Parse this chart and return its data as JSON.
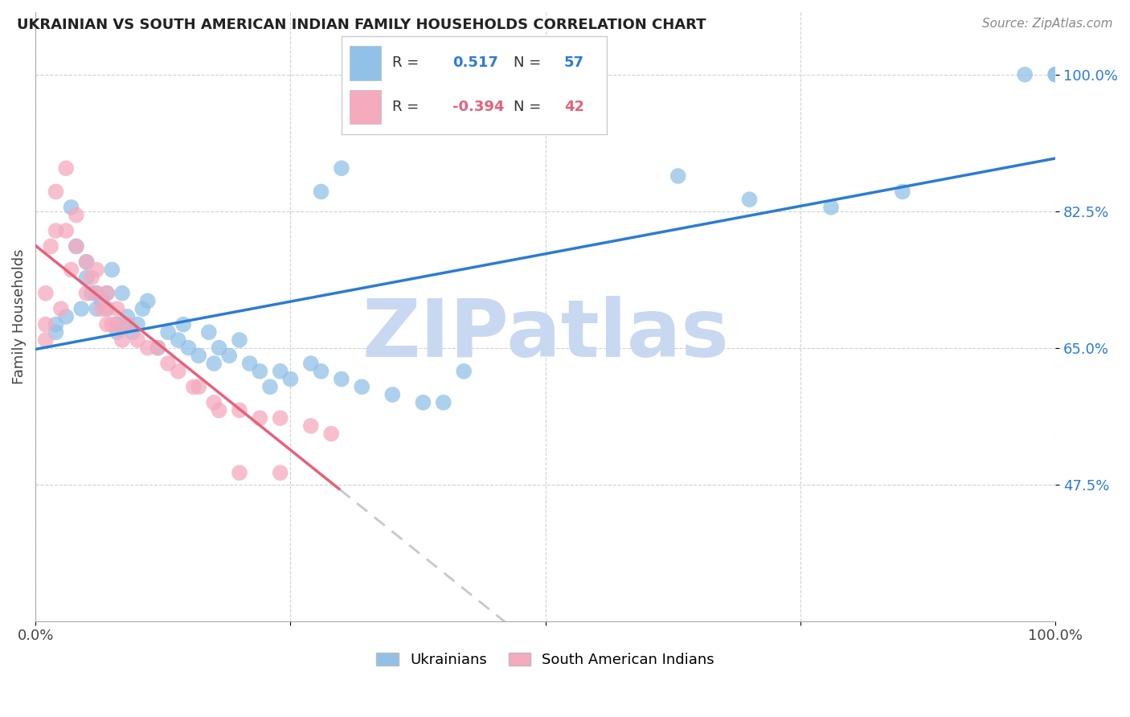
{
  "title": "UKRAINIAN VS SOUTH AMERICAN INDIAN FAMILY HOUSEHOLDS CORRELATION CHART",
  "source": "Source: ZipAtlas.com",
  "ylabel": "Family Households",
  "ytick_labels": [
    "100.0%",
    "82.5%",
    "65.0%",
    "47.5%"
  ],
  "ytick_values": [
    1.0,
    0.825,
    0.65,
    0.475
  ],
  "xlim": [
    0.0,
    1.0
  ],
  "ylim": [
    0.3,
    1.08
  ],
  "blue_R": "0.517",
  "blue_N": "57",
  "pink_R": "-0.394",
  "pink_N": "42",
  "blue_color": "#92C1E8",
  "pink_color": "#F5AABE",
  "blue_line_color": "#2B7CD3",
  "pink_line_color": "#E8607A",
  "watermark_text": "ZIPatlas",
  "watermark_color": "#C8D8F0",
  "blue_scatter_x": [
    0.02,
    0.02,
    0.03,
    0.035,
    0.04,
    0.045,
    0.05,
    0.05,
    0.055,
    0.06,
    0.06,
    0.065,
    0.07,
    0.07,
    0.075,
    0.08,
    0.08,
    0.085,
    0.09,
    0.09,
    0.095,
    0.1,
    0.105,
    0.11,
    0.12,
    0.13,
    0.14,
    0.145,
    0.15,
    0.16,
    0.17,
    0.175,
    0.18,
    0.19,
    0.2,
    0.21,
    0.22,
    0.23,
    0.24,
    0.25,
    0.27,
    0.28,
    0.3,
    0.32,
    0.35,
    0.38,
    0.4,
    0.42,
    0.3,
    0.28,
    0.7,
    0.85,
    1.0,
    0.97,
    0.63,
    1.0,
    0.78
  ],
  "blue_scatter_y": [
    0.68,
    0.67,
    0.69,
    0.83,
    0.78,
    0.7,
    0.76,
    0.74,
    0.72,
    0.72,
    0.7,
    0.71,
    0.72,
    0.7,
    0.75,
    0.68,
    0.67,
    0.72,
    0.69,
    0.68,
    0.67,
    0.68,
    0.7,
    0.71,
    0.65,
    0.67,
    0.66,
    0.68,
    0.65,
    0.64,
    0.67,
    0.63,
    0.65,
    0.64,
    0.66,
    0.63,
    0.62,
    0.6,
    0.62,
    0.61,
    0.63,
    0.62,
    0.61,
    0.6,
    0.59,
    0.58,
    0.58,
    0.62,
    0.88,
    0.85,
    0.84,
    0.85,
    1.0,
    1.0,
    0.87,
    1.0,
    0.83
  ],
  "pink_scatter_x": [
    0.01,
    0.01,
    0.015,
    0.02,
    0.02,
    0.025,
    0.03,
    0.03,
    0.035,
    0.04,
    0.04,
    0.05,
    0.05,
    0.055,
    0.06,
    0.06,
    0.065,
    0.07,
    0.07,
    0.075,
    0.08,
    0.08,
    0.085,
    0.09,
    0.1,
    0.11,
    0.12,
    0.13,
    0.14,
    0.155,
    0.16,
    0.175,
    0.18,
    0.2,
    0.22,
    0.24,
    0.27,
    0.29,
    0.01,
    0.07,
    0.2,
    0.24
  ],
  "pink_scatter_y": [
    0.72,
    0.68,
    0.78,
    0.85,
    0.8,
    0.7,
    0.88,
    0.8,
    0.75,
    0.82,
    0.78,
    0.76,
    0.72,
    0.74,
    0.75,
    0.72,
    0.7,
    0.72,
    0.7,
    0.68,
    0.7,
    0.68,
    0.66,
    0.68,
    0.66,
    0.65,
    0.65,
    0.63,
    0.62,
    0.6,
    0.6,
    0.58,
    0.57,
    0.57,
    0.56,
    0.56,
    0.55,
    0.54,
    0.66,
    0.68,
    0.49,
    0.49
  ],
  "legend_blue_label": [
    "R = ",
    "0.517",
    "  N = ",
    "57"
  ],
  "legend_pink_label": [
    "R = ",
    "-0.394",
    "  N = ",
    "42"
  ],
  "bottom_legend_labels": [
    "Ukrainians",
    "South American Indians"
  ]
}
